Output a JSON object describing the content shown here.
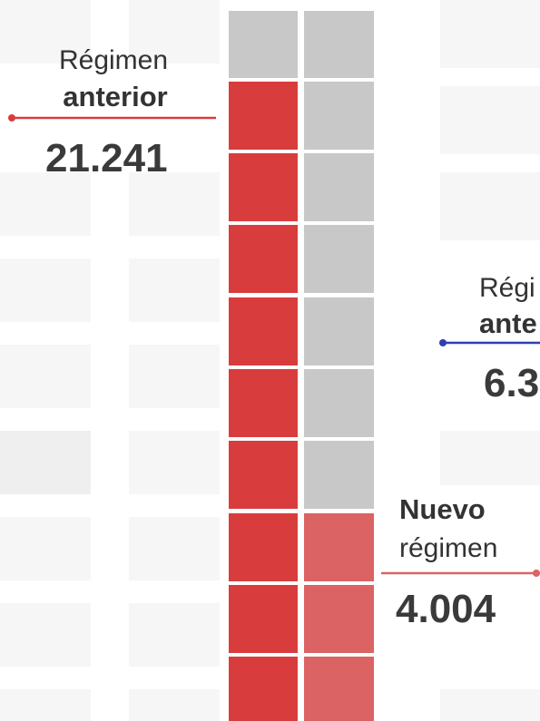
{
  "left_label": {
    "line1": "Régimen",
    "line2": "anterior",
    "value": "21.241"
  },
  "right_label": {
    "line1": "Régi",
    "line2": "ante",
    "value": "6.3"
  },
  "new_label": {
    "line1": "Nuevo",
    "line2": "régimen",
    "value": "4.004"
  }
}
